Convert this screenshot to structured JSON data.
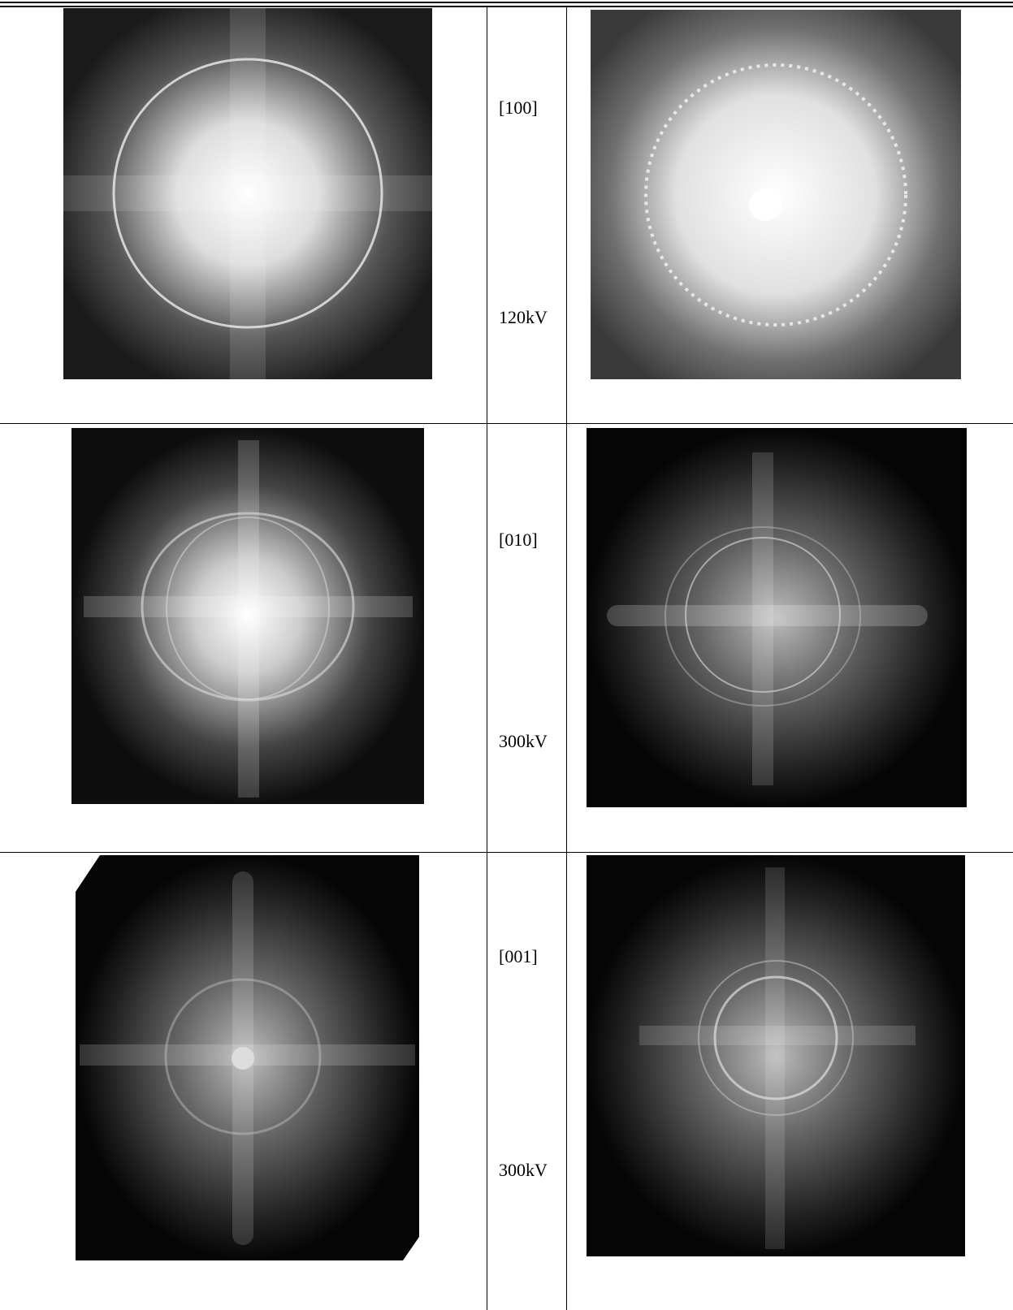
{
  "table": {
    "rows": [
      {
        "direction": "[100]",
        "voltage": "120kV"
      },
      {
        "direction": "[010]",
        "voltage": "300kV"
      },
      {
        "direction": "[001]",
        "voltage": "300kV"
      }
    ]
  }
}
